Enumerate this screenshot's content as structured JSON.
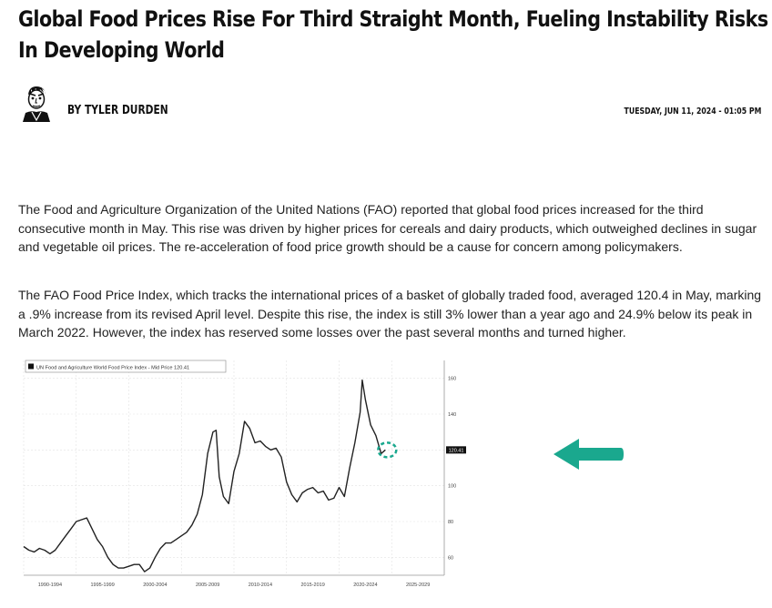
{
  "article": {
    "headline": "Global Food Prices Rise For Third Straight Month, Fueling Instability Risks In Developing World",
    "author": "BY TYLER DURDEN",
    "date": "TUESDAY, JUN 11, 2024 - 01:05 PM",
    "paragraphs": [
      "The Food and Agriculture Organization of the United Nations (FAO) reported that global food prices increased for the third consecutive month in May. This rise was driven by higher prices for cereals and dairy products, which outweighed declines in sugar and vegetable oil prices. The re-acceleration of food price growth should be a cause for concern among policymakers.",
      "The FAO Food Price Index, which tracks the international prices of a basket of globally traded food, averaged 120.4 in May, marking a .9% increase from its revised April level. Despite this rise, the index is still 3% lower than a year ago and 24.9% below its peak in March 2022. However, the index has reserved some losses over the past several months and turned higher."
    ]
  },
  "icons": {
    "avatar": "author-portrait",
    "annotation": "arrow-left-icon"
  },
  "colors": {
    "accent": "#1aa88e",
    "line": "#222222",
    "text": "#222222"
  },
  "chart_data": {
    "type": "line",
    "legend": "UN Food and Agriculture World Food Price Index - Mid Price 120.41",
    "last_value_label": "120.41",
    "x_tick_labels": [
      "1990-1994",
      "1995-1999",
      "2000-2004",
      "2005-2009",
      "2010-2014",
      "2015-2019",
      "2020-2024",
      "2025-2029"
    ],
    "y_tick_labels": [
      "60",
      "80",
      "100",
      "120",
      "140",
      "160"
    ],
    "xlim": [
      1990,
      2030
    ],
    "ylim": [
      50,
      170
    ],
    "grid": true,
    "legend_position": "top-left",
    "annotation": "dashed circle around latest value",
    "series": [
      {
        "x": [
          1990.0,
          1990.5,
          1991.0,
          1991.5,
          1992.0,
          1992.5,
          1993.0,
          1993.5,
          1994.0,
          1994.5,
          1995.0,
          1995.5,
          1996.0,
          1996.5,
          1997.0,
          1997.5,
          1998.0,
          1998.5,
          1999.0,
          1999.5,
          2000.0,
          2000.5,
          2001.0,
          2001.5,
          2002.0,
          2002.5,
          2003.0,
          2003.5,
          2004.0,
          2004.5,
          2005.0,
          2005.5,
          2006.0,
          2006.5,
          2007.0,
          2007.5,
          2008.0,
          2008.3,
          2008.6,
          2009.0,
          2009.5,
          2010.0,
          2010.5,
          2011.0,
          2011.5,
          2012.0,
          2012.5,
          2013.0,
          2013.5,
          2014.0,
          2014.5,
          2015.0,
          2015.5,
          2016.0,
          2016.5,
          2017.0,
          2017.5,
          2018.0,
          2018.5,
          2019.0,
          2019.5,
          2020.0,
          2020.5,
          2021.0,
          2021.5,
          2022.0,
          2022.2,
          2022.5,
          2023.0,
          2023.5,
          2024.0,
          2024.4
        ],
        "y": [
          66,
          64,
          63,
          65,
          64,
          62,
          64,
          68,
          72,
          76,
          80,
          81,
          82,
          76,
          70,
          66,
          60,
          56,
          54,
          54,
          55,
          56,
          56,
          52,
          54,
          60,
          65,
          68,
          68,
          70,
          72,
          74,
          78,
          84,
          95,
          118,
          130,
          131,
          105,
          94,
          90,
          108,
          118,
          136,
          132,
          124,
          125,
          122,
          120,
          121,
          116,
          102,
          95,
          91,
          96,
          98,
          99,
          96,
          97,
          92,
          93,
          99,
          94,
          110,
          124,
          141,
          159,
          148,
          134,
          128,
          118,
          120
        ]
      }
    ]
  }
}
